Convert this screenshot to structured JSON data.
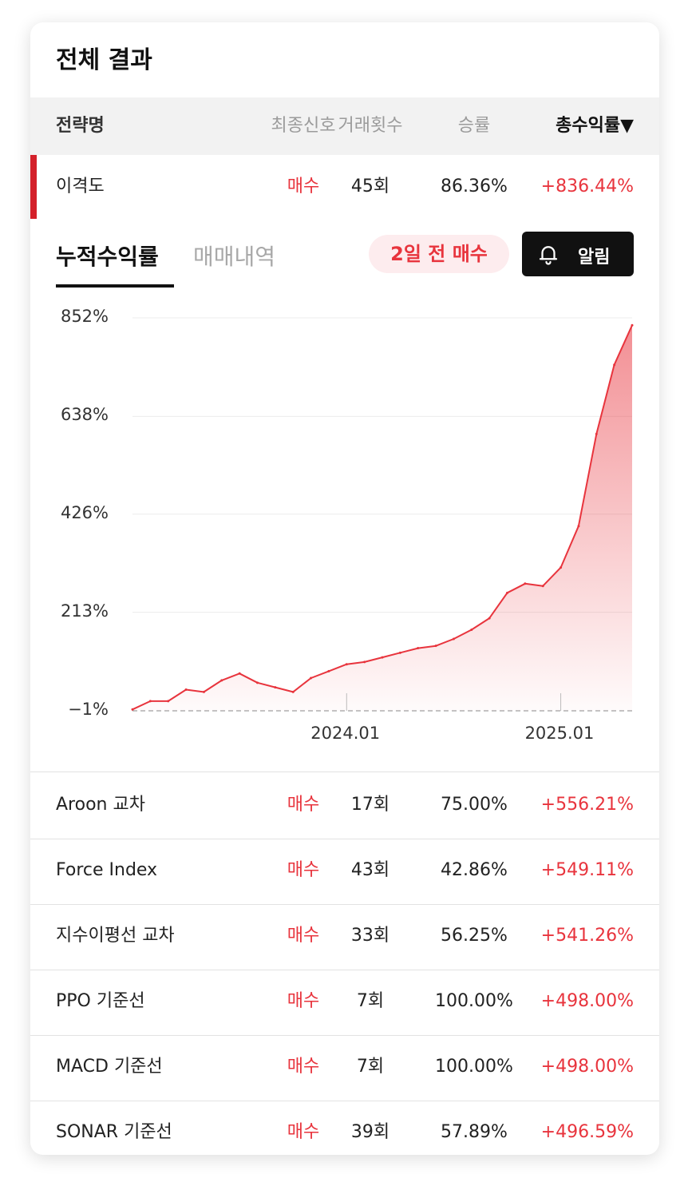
{
  "title": "전체 결과",
  "table_header": {
    "name": "전략명",
    "signal": "최종신호",
    "trades": "거래횟수",
    "winrate": "승률",
    "total_return": "총수익률▼"
  },
  "selected": {
    "name": "이격도",
    "signal": "매수",
    "trades": "45회",
    "winrate": "86.36%",
    "total_return": "+836.44%"
  },
  "tabs": {
    "active": "누적수익률",
    "inactive": "매매내역"
  },
  "badge": "2일 전 매수",
  "alarm_button": "알림",
  "colors": {
    "accent_red": "#e8343d",
    "dark": "#111111",
    "header_bg": "#f2f2f2"
  },
  "chart_data": {
    "type": "area",
    "yticks": [
      "852%",
      "638%",
      "426%",
      "213%",
      "−1%"
    ],
    "ytick_values": [
      852,
      638,
      426,
      213,
      -1
    ],
    "xticks": [
      "2024.01",
      "2025.01"
    ],
    "ylim": [
      -1,
      852
    ],
    "xlim": [
      "2023-01",
      "2025-05"
    ],
    "grid": true,
    "x": [
      "2023-01",
      "2023-02",
      "2023-03",
      "2023-04",
      "2023-05",
      "2023-06",
      "2023-07",
      "2023-08",
      "2023-09",
      "2023-10",
      "2023-11",
      "2023-12",
      "2024-01",
      "2024-02",
      "2024-03",
      "2024-04",
      "2024-05",
      "2024-06",
      "2024-07",
      "2024-08",
      "2024-09",
      "2024-10",
      "2024-11",
      "2024-12",
      "2025-01",
      "2025-02",
      "2025-03",
      "2025-04",
      "2025-05"
    ],
    "values": [
      2,
      20,
      20,
      45,
      40,
      65,
      80,
      60,
      50,
      40,
      70,
      85,
      100,
      105,
      115,
      125,
      135,
      140,
      155,
      175,
      200,
      255,
      275,
      270,
      310,
      400,
      600,
      750,
      836
    ]
  },
  "rows": [
    {
      "name": "Aroon 교차",
      "signal": "매수",
      "trades": "17회",
      "winrate": "75.00%",
      "total_return": "+556.21%"
    },
    {
      "name": "Force Index",
      "signal": "매수",
      "trades": "43회",
      "winrate": "42.86%",
      "total_return": "+549.11%"
    },
    {
      "name": "지수이평선 교차",
      "signal": "매수",
      "trades": "33회",
      "winrate": "56.25%",
      "total_return": "+541.26%"
    },
    {
      "name": "PPO 기준선",
      "signal": "매수",
      "trades": "7회",
      "winrate": "100.00%",
      "total_return": "+498.00%"
    },
    {
      "name": "MACD 기준선",
      "signal": "매수",
      "trades": "7회",
      "winrate": "100.00%",
      "total_return": "+498.00%"
    },
    {
      "name": "SONAR 기준선",
      "signal": "매수",
      "trades": "39회",
      "winrate": "57.89%",
      "total_return": "+496.59%"
    }
  ]
}
